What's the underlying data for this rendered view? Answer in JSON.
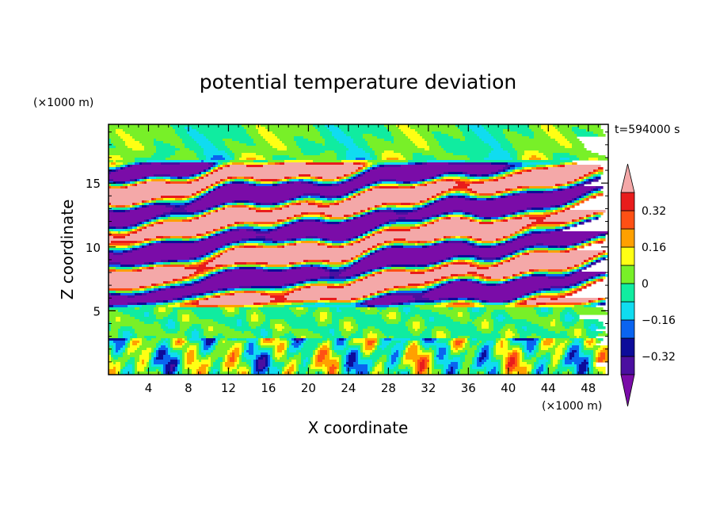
{
  "chart_data": {
    "type": "heatmap",
    "title": "potential temperature deviation",
    "xlabel": "X coordinate",
    "ylabel": "Z coordinate",
    "x_unit": "(×1000 m)",
    "y_unit": "(×1000 m)",
    "time_label": "t=594000 s",
    "xlim": [
      0,
      50
    ],
    "ylim": [
      0,
      19.6
    ],
    "x_ticks": [
      4,
      8,
      12,
      16,
      20,
      24,
      28,
      32,
      36,
      40,
      44,
      48
    ],
    "y_ticks": [
      5,
      10,
      15
    ],
    "colorbar": {
      "levels": [
        -0.4,
        -0.32,
        -0.24,
        -0.16,
        -0.08,
        0,
        0.08,
        0.16,
        0.24,
        0.32,
        0.4
      ],
      "tick_labels": [
        {
          "value": 0.32,
          "label": "0.32"
        },
        {
          "value": 0.16,
          "label": "0.16"
        },
        {
          "value": 0,
          "label": "0"
        },
        {
          "value": -0.16,
          "label": "−0.16"
        },
        {
          "value": -0.32,
          "label": "−0.32"
        }
      ],
      "colors_low_to_high": [
        "#7a0ca8",
        "#4b0fa0",
        "#0d0c9a",
        "#0a64f0",
        "#10dcf0",
        "#10eca0",
        "#78f028",
        "#ffff14",
        "#ffa000",
        "#ff5014",
        "#e81c1c",
        "#f4a8a8"
      ]
    },
    "layers": [
      {
        "z_range": [
          0,
          2.9
        ],
        "description": "convective boundary layer with mixed warm and cool plumes"
      },
      {
        "z_range": [
          2.9,
          5.2
        ],
        "description": "near-neutral layer, values close to 0"
      },
      {
        "z_range": [
          5.2,
          16.8
        ],
        "description": "tilted alternating warm (>0.4) and cool (<-0.4) bands"
      },
      {
        "z_range": [
          16.8,
          19.6
        ],
        "description": "upper layer, values close to 0"
      }
    ]
  }
}
